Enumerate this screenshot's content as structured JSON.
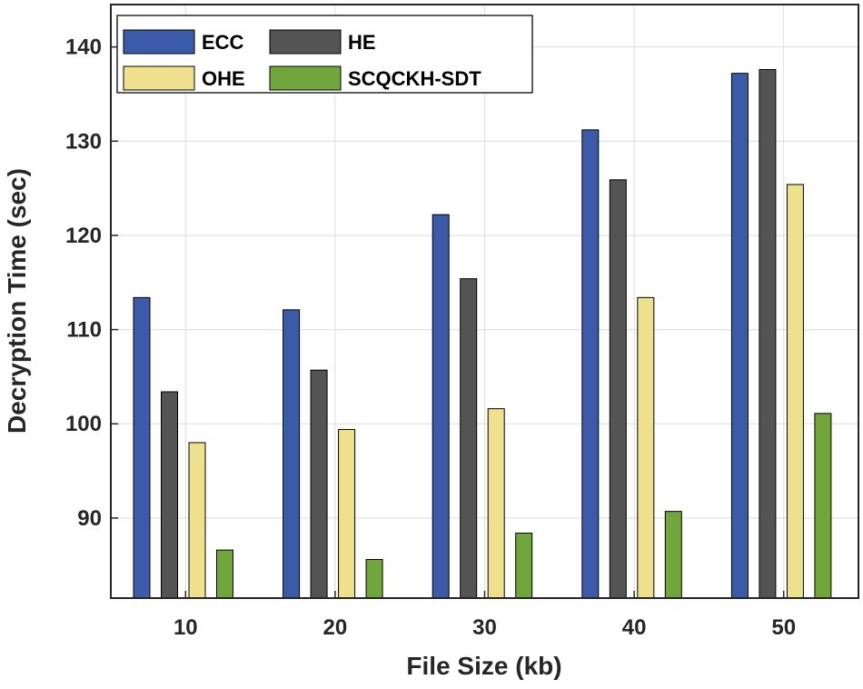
{
  "chart_data": {
    "type": "bar",
    "title": "",
    "xlabel": "File Size (kb)",
    "ylabel": "Decryption Time (sec)",
    "categories": [
      "10",
      "20",
      "30",
      "40",
      "50"
    ],
    "ylim": [
      81.5,
      144.5
    ],
    "yticks": [
      90,
      100,
      110,
      120,
      130,
      140
    ],
    "yticklabels": [
      "90",
      "100",
      "110",
      "120",
      "130",
      "140"
    ],
    "grid": true,
    "legend_position": "top-left",
    "series": [
      {
        "name": "ECC",
        "color": "#3b5aa8",
        "values": [
          113.4,
          112.1,
          122.2,
          131.2,
          137.2
        ]
      },
      {
        "name": "HE",
        "color": "#545454",
        "values": [
          103.4,
          105.7,
          115.4,
          125.9,
          137.6
        ]
      },
      {
        "name": "OHE",
        "color": "#efe08e",
        "values": [
          98.0,
          99.4,
          101.6,
          113.4,
          125.4
        ]
      },
      {
        "name": "SCQCKH-SDT",
        "color": "#71a63c",
        "values": [
          86.6,
          85.6,
          88.4,
          90.7,
          101.1
        ]
      }
    ]
  }
}
